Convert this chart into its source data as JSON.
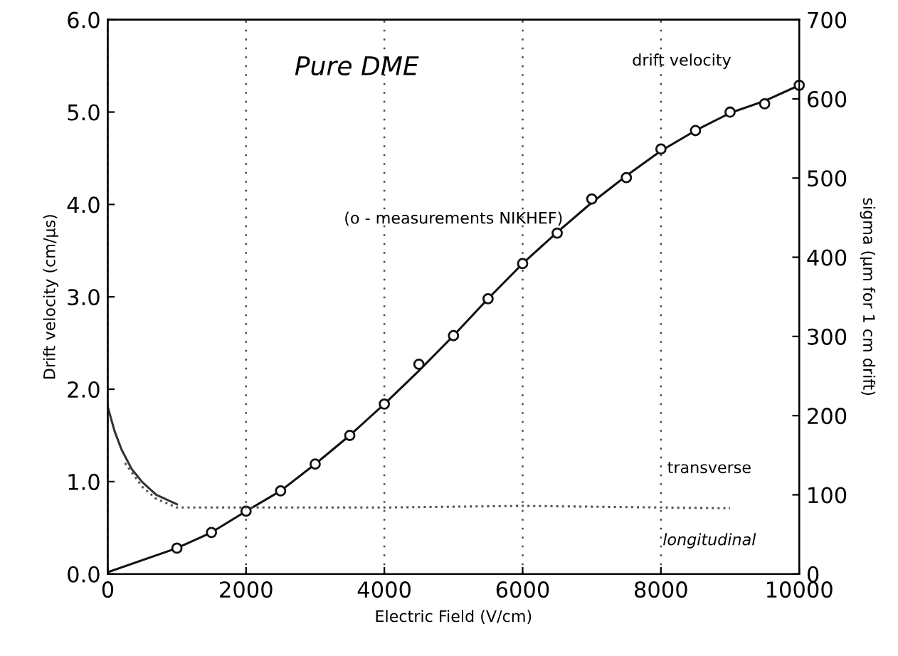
{
  "chart_data": {
    "type": "line",
    "title": "Pure DME",
    "xlabel": "Electric Field (V/cm)",
    "ylabel": "Drift velocity (cm/μs)",
    "y2label": "sigma (μm for 1 cm drift)",
    "series": [
      {
        "color": "#111111",
        "x": [
          0,
          1000,
          1500,
          2000,
          2500,
          3000,
          3500,
          4000,
          4500,
          5000,
          5500,
          6000,
          6500,
          7000,
          7500,
          8000,
          8500,
          9000,
          9500,
          10000
        ],
        "values": [
          0.02,
          0.28,
          0.45,
          0.68,
          0.9,
          1.19,
          1.5,
          1.84,
          2.2,
          2.58,
          2.98,
          3.36,
          3.7,
          4.02,
          4.31,
          4.58,
          4.8,
          4.99,
          5.12,
          5.29
        ],
        "marker": "none",
        "line_style": "solid"
      },
      {
        "type": "scatter",
        "color": "#111111",
        "x": [
          1000,
          1500,
          2000,
          2500,
          3000,
          3500,
          4000,
          4500,
          5000,
          5500,
          6000,
          6500,
          7000,
          7500,
          8000,
          8500,
          9000,
          9500,
          10000
        ],
        "values": [
          0.28,
          0.45,
          0.68,
          0.9,
          1.19,
          1.5,
          1.84,
          2.27,
          2.58,
          2.98,
          3.36,
          3.69,
          4.06,
          4.29,
          4.6,
          4.8,
          5.0,
          5.09,
          5.29
        ],
        "marker": "circle"
      },
      {
        "type": "line",
        "axis": "y2",
        "color": "#333333",
        "x": [
          0,
          100,
          200,
          350,
          500,
          700,
          1000
        ],
        "values": [
          211,
          180,
          157,
          132,
          116,
          100,
          88
        ],
        "marker": "none",
        "line_style": "solid"
      },
      {
        "type": "line",
        "axis": "y2",
        "color": "#555555",
        "x": [
          250,
          500,
          700,
          1000,
          2000,
          3000,
          4000,
          5000,
          6000,
          7000,
          8000,
          9000
        ],
        "values": [
          140,
          110,
          95,
          84,
          84,
          84,
          84,
          85,
          86,
          85,
          84,
          83
        ],
        "marker": "none",
        "line_style": "dotted"
      }
    ],
    "annotations": [
      "drift velocity",
      "(o - measurements NIKHEF)",
      "transverse",
      "longitudinal"
    ],
    "xlim": [
      0,
      10000
    ],
    "xticks": [
      0,
      2000,
      4000,
      6000,
      8000,
      10000
    ],
    "ylim": [
      0,
      6
    ],
    "yticks": [
      {
        "value": 0,
        "label": "0.0"
      },
      {
        "value": 1,
        "label": "1.0"
      },
      {
        "value": 2,
        "label": "2.0"
      },
      {
        "value": 3,
        "label": "3.0"
      },
      {
        "value": 4,
        "label": "4.0"
      },
      {
        "value": 5,
        "label": "5.0"
      },
      {
        "value": 6,
        "label": "6.0"
      }
    ],
    "y2lim": [
      0,
      700
    ],
    "y2ticks": [
      0,
      100,
      200,
      300,
      400,
      500,
      600,
      700
    ],
    "grid": "x",
    "legend": false
  }
}
